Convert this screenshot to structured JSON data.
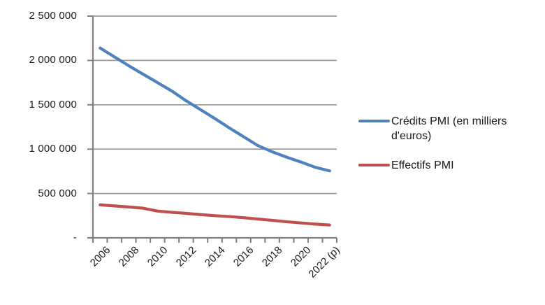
{
  "chart_data": {
    "type": "line",
    "x": [
      "2006",
      "2007",
      "2008",
      "2009",
      "2010",
      "2011",
      "2012",
      "2013",
      "2014",
      "2015",
      "2016",
      "2017",
      "2018",
      "2019",
      "2020",
      "2021",
      "2022 (p)"
    ],
    "x_labeled_indices": [
      0,
      2,
      4,
      6,
      8,
      10,
      12,
      14,
      16
    ],
    "series": [
      {
        "name": "Crédits PMI (en milliers d'euros)",
        "color": "#4F81BD",
        "values": [
          2140000,
          2040000,
          1940000,
          1845000,
          1750000,
          1655000,
          1545000,
          1445000,
          1345000,
          1240000,
          1140000,
          1040000,
          970000,
          910000,
          855000,
          795000,
          755000
        ]
      },
      {
        "name": "Effectifs PMI",
        "color": "#C0504D",
        "values": [
          372000,
          360000,
          348000,
          334000,
          302000,
          288000,
          276000,
          262000,
          250000,
          240000,
          227000,
          212000,
          197000,
          182000,
          168000,
          155000,
          145000
        ]
      }
    ],
    "title": "",
    "xlabel": "",
    "ylabel": "",
    "ylim": [
      0,
      2500000
    ],
    "y_tick_step": 500000,
    "y_tick_labels_top_down": [
      "2 500 000",
      "2 000 000",
      "1 500 000",
      "1 000 000",
      "500 000",
      "-"
    ],
    "grid": true,
    "legend_position": "right"
  },
  "style": {
    "grid_color": "#989898",
    "axis_color": "#808080",
    "text_color": "#1a1a1a",
    "background": "#ffffff"
  }
}
